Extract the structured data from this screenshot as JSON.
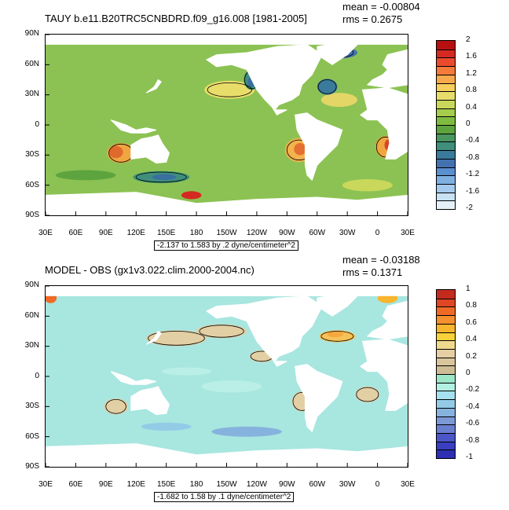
{
  "chart_data": [
    {
      "type": "heatmap",
      "title": "TAUY b.e11.B20TRC5CNBDRD.f09_g16.008 [1981-2005]",
      "stats": {
        "mean": "mean = -0.00804",
        "rms": "rms = 0.2675"
      },
      "info": "-2.137 to 1.583 by .2 dyne/centimeter^2",
      "lat_ticks": [
        "90N",
        "60N",
        "30N",
        "0",
        "30S",
        "60S",
        "90S"
      ],
      "lon_ticks": [
        "30E",
        "60E",
        "90E",
        "120E",
        "150E",
        "180",
        "150W",
        "120W",
        "90W",
        "60W",
        "30W",
        "0",
        "30E"
      ],
      "colorbar": {
        "labels": [
          "2",
          "1.6",
          "1.2",
          "0.8",
          "0.4",
          "0",
          "-0.4",
          "-0.8",
          "-1.2",
          "-1.6",
          "-2"
        ],
        "colors": [
          "#b71010",
          "#d42a22",
          "#ea4b2e",
          "#f47b3a",
          "#f8a94b",
          "#f7cf5d",
          "#e8dd6a",
          "#c9d85b",
          "#a6cc4c",
          "#7fbb41",
          "#5da43f",
          "#4a9660",
          "#3f8f7c",
          "#3a7a9a",
          "#4472b0",
          "#5a8fd0",
          "#7eb0e2",
          "#a4cbee",
          "#c8e2f4",
          "#e4f2f8"
        ]
      },
      "ocean_base": "#8cc253",
      "blobs": [
        {
          "lon": 105,
          "lat": -28,
          "rx": 14,
          "ry": 10,
          "color": "#f0a640"
        },
        {
          "lon": 100,
          "lat": -27,
          "rx": 7,
          "ry": 6,
          "color": "#e06a2e"
        },
        {
          "lon": 282,
          "lat": -25,
          "rx": 14,
          "ry": 12,
          "color": "#f3b24c"
        },
        {
          "lon": 283,
          "lat": -24,
          "rx": 6,
          "ry": 6,
          "color": "#e37030"
        },
        {
          "lon": 8,
          "lat": -22,
          "rx": 10,
          "ry": 11,
          "color": "#f0a640"
        },
        {
          "lon": 12,
          "lat": -20,
          "rx": 5,
          "ry": 6,
          "color": "#d9452a"
        },
        {
          "lon": 213,
          "lat": 35,
          "rx": 25,
          "ry": 9,
          "color": "#e9dd6a"
        },
        {
          "lon": 322,
          "lat": 25,
          "rx": 18,
          "ry": 7,
          "color": "#e4d567"
        },
        {
          "lon": 235,
          "lat": 45,
          "rx": 8,
          "ry": 10,
          "color": "#3f8f7c"
        },
        {
          "lon": 235,
          "lat": 43,
          "rx": 4,
          "ry": 5,
          "color": "#3a6fa0"
        },
        {
          "lon": 310,
          "lat": 38,
          "rx": 10,
          "ry": 8,
          "color": "#3a7a9a"
        },
        {
          "lon": 145,
          "lat": -52,
          "rx": 28,
          "ry": 6,
          "color": "#3f8f7c"
        },
        {
          "lon": 148,
          "lat": -52,
          "rx": 12,
          "ry": 3,
          "color": "#3a6fa0"
        },
        {
          "lon": 70,
          "lat": -50,
          "rx": 30,
          "ry": 5,
          "color": "#5da43f"
        },
        {
          "lon": 175,
          "lat": -70,
          "rx": 10,
          "ry": 4,
          "color": "#d42a22"
        },
        {
          "lon": 320,
          "lat": 72,
          "rx": 20,
          "ry": 6,
          "color": "#4472b0"
        },
        {
          "lon": 350,
          "lat": -60,
          "rx": 25,
          "ry": 6,
          "color": "#c9d85b"
        }
      ],
      "contours": [
        {
          "lon": 105,
          "lat": -28,
          "rx": 12,
          "ry": 9
        },
        {
          "lon": 282,
          "lat": -25,
          "rx": 12,
          "ry": 10
        },
        {
          "lon": 8,
          "lat": -22,
          "rx": 9,
          "ry": 10
        },
        {
          "lon": 235,
          "lat": 45,
          "rx": 7,
          "ry": 9
        },
        {
          "lon": 213,
          "lat": 35,
          "rx": 22,
          "ry": 7
        },
        {
          "lon": 145,
          "lat": -52,
          "rx": 25,
          "ry": 5
        },
        {
          "lon": 310,
          "lat": 38,
          "rx": 9,
          "ry": 7
        },
        {
          "lon": 320,
          "lat": 72,
          "rx": 16,
          "ry": 5
        }
      ]
    },
    {
      "type": "heatmap",
      "title": "MODEL - OBS (gx1v3.022.clim.2000-2004.nc)",
      "stats": {
        "mean": "mean = -0.03188",
        "rms": "rms = 0.1371"
      },
      "info": "-1.682 to 1.58 by .1 dyne/centimeter^2",
      "lat_ticks": [
        "90N",
        "60N",
        "30N",
        "0",
        "30S",
        "60S",
        "90S"
      ],
      "lon_ticks": [
        "30E",
        "60E",
        "90E",
        "120E",
        "150E",
        "180",
        "150W",
        "120W",
        "90W",
        "60W",
        "30W",
        "0",
        "30E"
      ],
      "colorbar": {
        "labels": [
          "1",
          "0.8",
          "0.6",
          "0.4",
          "0.2",
          "0",
          "-0.2",
          "-0.4",
          "-0.6",
          "-0.8",
          "-1"
        ],
        "colors": [
          "#c42b1f",
          "#e04626",
          "#ef6a26",
          "#f4902d",
          "#f8b52e",
          "#f9d13a",
          "#efd98d",
          "#e6cfa3",
          "#d9c69c",
          "#cdbd95",
          "#9ce6c8",
          "#b3f0e4",
          "#a5e1ef",
          "#93cbe7",
          "#86b2de",
          "#7c99d6",
          "#6a7fd0",
          "#4b56c8",
          "#3a3ec0",
          "#2e2fb3"
        ]
      },
      "ocean_base": "#a8e6e0",
      "blobs": [
        {
          "lon": 160,
          "lat": 38,
          "rx": 30,
          "ry": 8,
          "color": "#e2cfa4"
        },
        {
          "lon": 205,
          "lat": 45,
          "rx": 25,
          "ry": 7,
          "color": "#e2cfa4"
        },
        {
          "lon": 320,
          "lat": 40,
          "rx": 18,
          "ry": 6,
          "color": "#f6c35a"
        },
        {
          "lon": 318,
          "lat": 42,
          "rx": 8,
          "ry": 3,
          "color": "#f7a73d"
        },
        {
          "lon": 100,
          "lat": -30,
          "rx": 12,
          "ry": 8,
          "color": "#e2cfa4"
        },
        {
          "lon": 285,
          "lat": -25,
          "rx": 10,
          "ry": 10,
          "color": "#e2cfa4"
        },
        {
          "lon": 350,
          "lat": -18,
          "rx": 12,
          "ry": 8,
          "color": "#e2cfa4"
        },
        {
          "lon": 215,
          "lat": -10,
          "rx": 30,
          "ry": 6,
          "color": "#b9efe6"
        },
        {
          "lon": 35,
          "lat": 78,
          "rx": 6,
          "ry": 5,
          "color": "#ef6a26"
        },
        {
          "lon": 10,
          "lat": 78,
          "rx": 10,
          "ry": 5,
          "color": "#f8b52e"
        },
        {
          "lon": 230,
          "lat": -55,
          "rx": 35,
          "ry": 5,
          "color": "#86b2de"
        },
        {
          "lon": 150,
          "lat": -50,
          "rx": 25,
          "ry": 4,
          "color": "#93cbe7"
        },
        {
          "lon": 70,
          "lat": -72,
          "rx": 15,
          "ry": 3,
          "color": "#4b56c8"
        },
        {
          "lon": 245,
          "lat": 20,
          "rx": 12,
          "ry": 6,
          "color": "#e2cfa4"
        },
        {
          "lon": 170,
          "lat": 5,
          "rx": 25,
          "ry": 4,
          "color": "#b9efe6"
        }
      ],
      "contours": [
        {
          "lon": 160,
          "lat": 38,
          "rx": 28,
          "ry": 7
        },
        {
          "lon": 205,
          "lat": 45,
          "rx": 22,
          "ry": 6
        },
        {
          "lon": 320,
          "lat": 40,
          "rx": 16,
          "ry": 5
        },
        {
          "lon": 100,
          "lat": -30,
          "rx": 10,
          "ry": 7
        },
        {
          "lon": 285,
          "lat": -25,
          "rx": 9,
          "ry": 9
        },
        {
          "lon": 350,
          "lat": -18,
          "rx": 11,
          "ry": 7
        },
        {
          "lon": 245,
          "lat": 20,
          "rx": 11,
          "ry": 5
        }
      ]
    }
  ]
}
